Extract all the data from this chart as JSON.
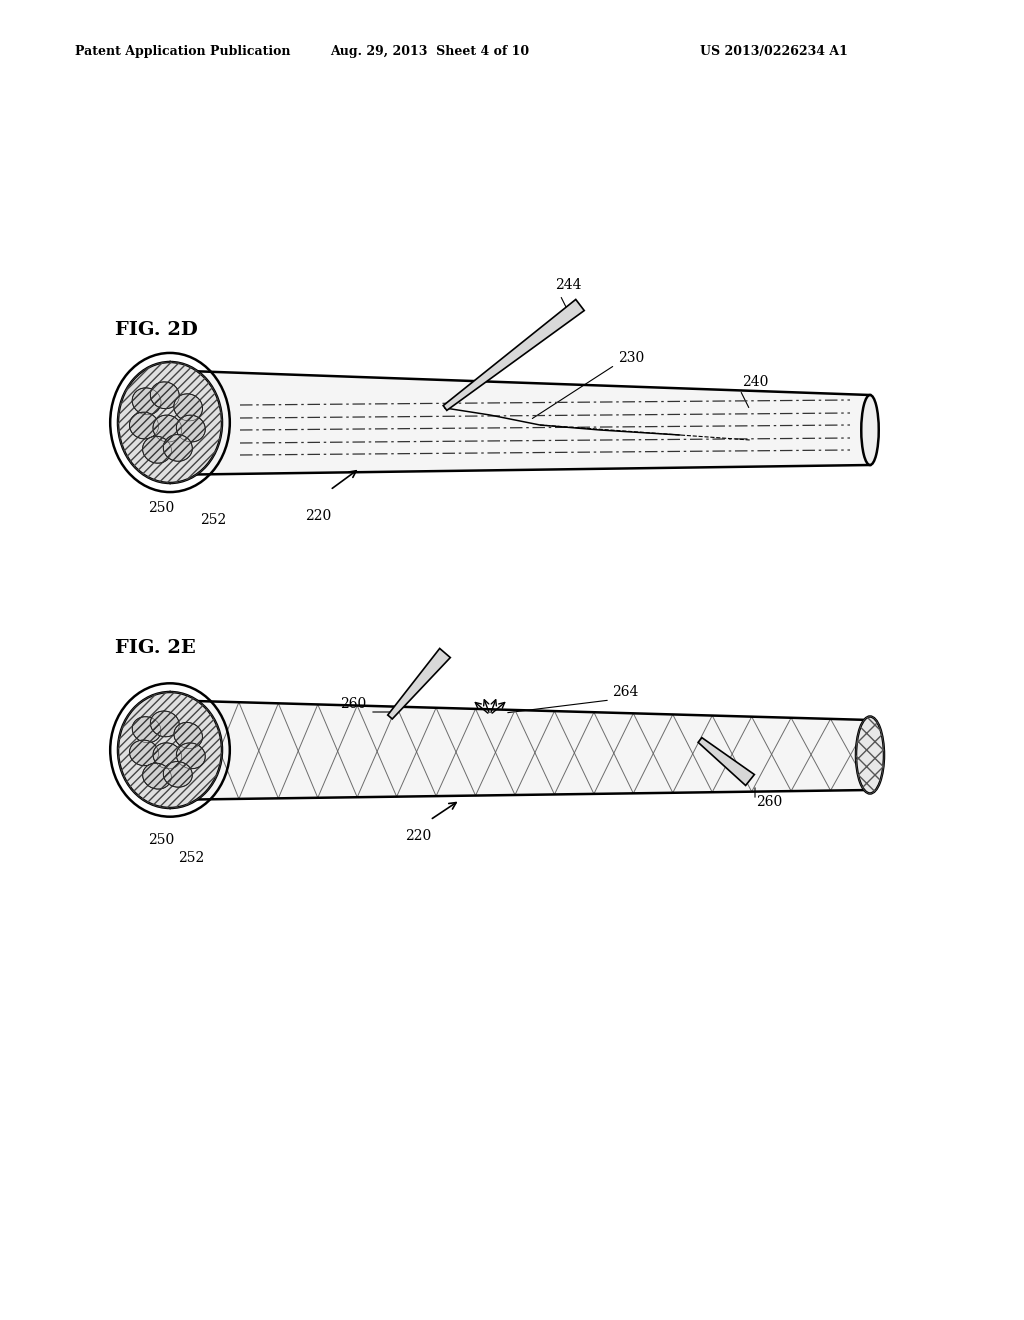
{
  "header_left": "Patent Application Publication",
  "header_center": "Aug. 29, 2013  Sheet 4 of 10",
  "header_right": "US 2013/0226234 A1",
  "fig2d_label": "FIG. 2D",
  "fig2e_label": "FIG. 2E",
  "bg_color": "#ffffff",
  "line_color": "#000000",
  "label_fontsize": 10,
  "header_fontsize": 9,
  "fig_label_fontsize": 14
}
